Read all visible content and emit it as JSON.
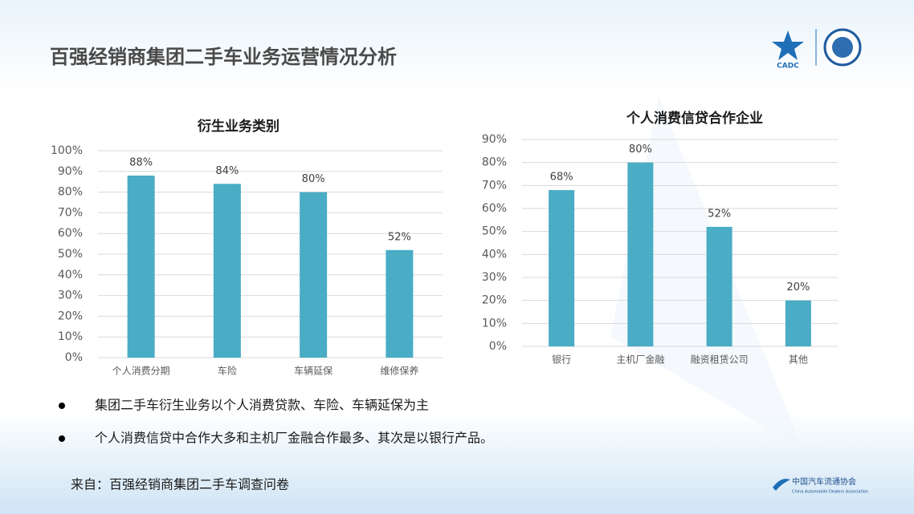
{
  "header": {
    "title": "百强经销商集团二手车业务运营情况分析",
    "logo_text": "CADC"
  },
  "chart_data": [
    {
      "type": "bar",
      "title": "衍生业务类别",
      "categories": [
        "个人消费分期",
        "车险",
        "车辆延保",
        "维修保养"
      ],
      "values": [
        88,
        84,
        80,
        52
      ],
      "value_labels": [
        "88%",
        "84%",
        "80%",
        "52%"
      ],
      "color": "#4aacc5",
      "ylim": [
        0,
        100
      ],
      "yticks": [
        {
          "value": 0,
          "label": "0%"
        },
        {
          "value": 10,
          "label": "10%"
        },
        {
          "value": 20,
          "label": "20%"
        },
        {
          "value": 30,
          "label": "30%"
        },
        {
          "value": 40,
          "label": "40%"
        },
        {
          "value": 50,
          "label": "50%"
        },
        {
          "value": 60,
          "label": "60%"
        },
        {
          "value": 70,
          "label": "70%"
        },
        {
          "value": 80,
          "label": "80%"
        },
        {
          "value": 90,
          "label": "90%"
        },
        {
          "value": 100,
          "label": "100%"
        }
      ],
      "grid": true
    },
    {
      "type": "bar",
      "title": "个人消费信贷合作企业",
      "categories": [
        "银行",
        "主机厂金融",
        "融资租赁公司",
        "其他"
      ],
      "values": [
        68,
        80,
        52,
        20
      ],
      "value_labels": [
        "68%",
        "80%",
        "52%",
        "20%"
      ],
      "color": "#4aacc5",
      "ylim": [
        0,
        90
      ],
      "yticks": [
        {
          "value": 0,
          "label": "0%"
        },
        {
          "value": 10,
          "label": "10%"
        },
        {
          "value": 20,
          "label": "20%"
        },
        {
          "value": 30,
          "label": "30%"
        },
        {
          "value": 40,
          "label": "40%"
        },
        {
          "value": 50,
          "label": "50%"
        },
        {
          "value": 60,
          "label": "60%"
        },
        {
          "value": 70,
          "label": "70%"
        },
        {
          "value": 80,
          "label": "80%"
        },
        {
          "value": 90,
          "label": "90%"
        }
      ],
      "grid": true
    }
  ],
  "bullets": [
    "集团二手车衍生业务以个人消费贷款、车险、车辆延保为主",
    "个人消费信贷中合作大多和主机厂金融合作最多、其次是以银行产品。"
  ],
  "source": "来自：百强经销商集团二手车调查问卷",
  "footer": {
    "org": "中国汽车流通协会",
    "org_en": "China Automobile Dealers Association"
  }
}
